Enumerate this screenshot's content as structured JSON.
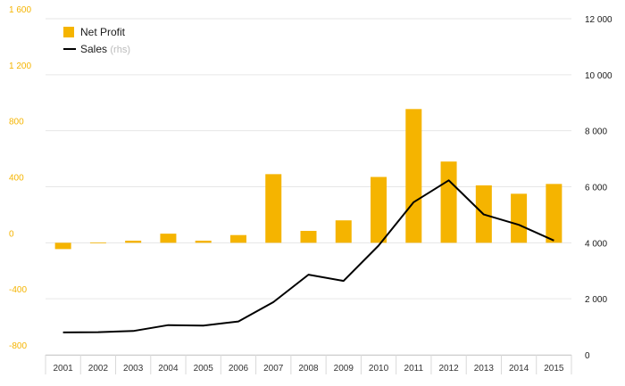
{
  "chart_data": {
    "type": "bar+line",
    "categories": [
      "2001",
      "2002",
      "2003",
      "2004",
      "2005",
      "2006",
      "2007",
      "2008",
      "2009",
      "2010",
      "2011",
      "2012",
      "2013",
      "2014",
      "2015"
    ],
    "series": [
      {
        "name": "Net Profit",
        "axis": "left",
        "type": "bar",
        "color": "#f5b400",
        "values": [
          -45,
          2,
          15,
          65,
          15,
          55,
          490,
          85,
          160,
          470,
          955,
          580,
          410,
          350,
          420
        ]
      },
      {
        "name": "Sales",
        "name_suffix": "(rhs)",
        "axis": "right",
        "type": "line",
        "color": "#000000",
        "values": [
          800,
          810,
          850,
          1060,
          1040,
          1190,
          1880,
          2860,
          2640,
          3900,
          5450,
          6230,
          5010,
          4640,
          4080
        ]
      }
    ],
    "left_axis": {
      "min": -800,
      "max": 1600,
      "step": 400,
      "tick_labels": [
        "-800",
        "-400",
        "0",
        "400",
        "800",
        "1 200",
        "1 600"
      ],
      "color": "#f5b400"
    },
    "right_axis": {
      "min": 0,
      "max": 12000,
      "step": 2000,
      "tick_labels": [
        "0",
        "2 000",
        "4 000",
        "6 000",
        "8 000",
        "10 000",
        "12 000"
      ],
      "color": "#1a1a1a"
    },
    "grid": true,
    "legend": "top-left",
    "title": "",
    "xlabel": "",
    "ylabel": ""
  }
}
